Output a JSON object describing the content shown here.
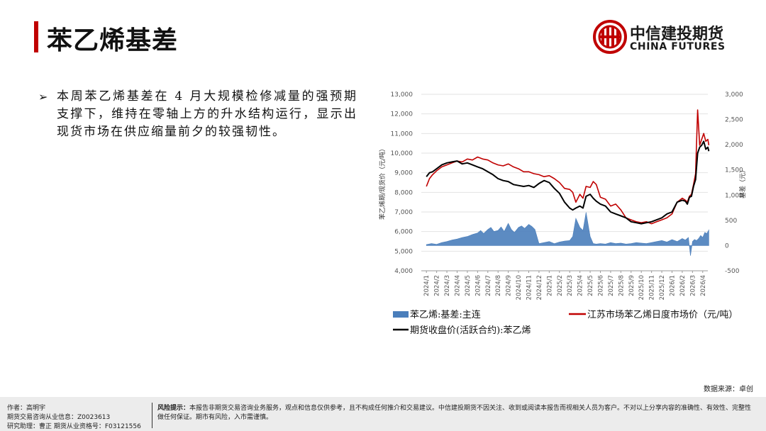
{
  "header": {
    "title": "苯乙烯基差",
    "logo_cn": "中信建投期货",
    "logo_en": "CHINA FUTURES"
  },
  "bullet": {
    "text": "本周苯乙烯基差在 4 月大规模检修减量的强预期支撑下，维持在零轴上方的升水结构运行，显示出现货市场在供应缩量前夕的较强韧性。"
  },
  "source": "数据来源：卓创",
  "footer": {
    "author": "作者：高明宇",
    "license": "期货交易咨询从业信息：Z0023613",
    "assistant": "研究助理：曹正  期货从业资格号：F03121556",
    "risk_label": "风险提示：",
    "risk_text": "本报告非期货交易咨询业务服务，观点和信息仅供参考，且不构成任何推介和交易建议。中信建投期货不因关注、收到或阅读本报告而视相关人员为客户。不对以上分享内容的准确性、有效性、完整性做任何保证。期市有风险，入市需谨慎。"
  },
  "colors": {
    "title_bar": "#c00000",
    "basis": "#4a7ebb",
    "spot": "#c00000",
    "futures": "#000000"
  },
  "chart_data": {
    "type": "line",
    "left_axis": {
      "label": "苯乙烯期/现货价（元/吨）",
      "min": 4000,
      "max": 13000,
      "step": 1000,
      "ticks": [
        "4,000",
        "5,000",
        "6,000",
        "7,000",
        "8,000",
        "9,000",
        "10,000",
        "11,000",
        "12,000",
        "13,000"
      ]
    },
    "right_axis": {
      "label": "基差（元）",
      "min": -500,
      "max": 3000,
      "step": 500,
      "ticks": [
        "-500",
        "0",
        "500",
        "1,000",
        "1,500",
        "2,000",
        "2,500",
        "3,000"
      ]
    },
    "x_labels": [
      "2024/1",
      "2024/2",
      "2024/3",
      "2024/4",
      "2024/5",
      "2024/6",
      "2024/7",
      "2024/8",
      "2024/9",
      "2024/10",
      "2024/11",
      "2024/12",
      "2025/1",
      "2025/2",
      "2025/3",
      "2025/4",
      "2025/5",
      "2025/6",
      "2025/7",
      "2025/8",
      "2025/9",
      "2025/10",
      "2025/11",
      "2025/12",
      "2026/1",
      "2026/2",
      "2026/3",
      "2026/4"
    ],
    "grid": true,
    "legend_position": "bottom",
    "series": [
      {
        "name": "苯乙烯:基差:主连",
        "kind": "area",
        "axis": "right",
        "x": [
          0,
          0.5,
          1,
          1.5,
          2,
          2.5,
          3,
          3.5,
          4,
          4.5,
          5,
          5.3,
          5.6,
          6,
          6.3,
          6.6,
          7,
          7.3,
          7.6,
          8,
          8.3,
          8.6,
          9,
          9.3,
          9.6,
          10,
          10.3,
          10.6,
          11,
          11.5,
          12,
          12.5,
          13,
          13.5,
          14,
          14.3,
          14.6,
          15,
          15.3,
          15.6,
          16,
          16.3,
          16.6,
          17,
          17.5,
          18,
          18.5,
          19,
          19.5,
          20,
          20.5,
          21,
          21.5,
          22,
          22.5,
          23,
          23.5,
          24,
          24.5,
          25,
          25.3,
          25.6,
          25.8,
          26,
          26.2,
          26.4,
          26.6,
          26.8,
          27,
          27.2,
          27.4,
          27.6
        ],
        "values": [
          20,
          40,
          25,
          60,
          80,
          110,
          130,
          160,
          180,
          220,
          250,
          300,
          240,
          320,
          360,
          280,
          300,
          370,
          280,
          440,
          320,
          260,
          360,
          390,
          340,
          420,
          380,
          320,
          40,
          60,
          80,
          40,
          70,
          90,
          100,
          180,
          540,
          360,
          300,
          660,
          180,
          40,
          30,
          40,
          30,
          60,
          40,
          50,
          30,
          40,
          60,
          50,
          40,
          60,
          80,
          100,
          70,
          120,
          80,
          140,
          110,
          160,
          -200,
          80,
          120,
          100,
          140,
          200,
          160,
          260,
          240,
          310
        ]
      },
      {
        "name": "江苏市场苯乙烯日度市场价（元/吨）",
        "kind": "line",
        "axis": "left",
        "x": [
          0,
          0.3,
          0.6,
          1,
          1.5,
          2,
          2.5,
          3,
          3.5,
          4,
          4.5,
          5,
          5.5,
          6,
          6.5,
          7,
          7.5,
          8,
          8.5,
          9,
          9.5,
          10,
          10.5,
          11,
          11.5,
          12,
          12.5,
          13,
          13.5,
          14,
          14.3,
          14.6,
          15,
          15.3,
          15.6,
          16,
          16.3,
          16.6,
          17,
          17.5,
          18,
          18.5,
          19,
          19.5,
          20,
          20.5,
          21,
          21.5,
          22,
          22.5,
          23,
          23.5,
          24,
          24.5,
          25,
          25.3,
          25.5,
          25.7,
          25.9,
          26.1,
          26.3,
          26.5,
          26.7,
          26.9,
          27.1,
          27.3,
          27.5,
          27.6
        ],
        "values": [
          8300,
          8700,
          8900,
          9100,
          9300,
          9400,
          9500,
          9600,
          9550,
          9700,
          9650,
          9800,
          9700,
          9650,
          9500,
          9400,
          9350,
          9450,
          9300,
          9200,
          9050,
          9050,
          8950,
          8900,
          8800,
          8850,
          8700,
          8500,
          8200,
          8150,
          8000,
          7500,
          7900,
          7700,
          8300,
          8250,
          8550,
          8400,
          7750,
          7650,
          7300,
          7400,
          7100,
          6700,
          6600,
          6500,
          6450,
          6500,
          6400,
          6500,
          6600,
          6700,
          6900,
          7500,
          7700,
          7600,
          7500,
          7800,
          7900,
          8400,
          8950,
          12200,
          10400,
          10700,
          11000,
          10600,
          10700,
          10400
        ]
      },
      {
        "name": "期货收盘价(活跃合约):苯乙烯",
        "kind": "line",
        "axis": "left",
        "x": [
          0,
          0.3,
          0.6,
          1,
          1.5,
          2,
          2.5,
          3,
          3.5,
          4,
          4.5,
          5,
          5.5,
          6,
          6.5,
          7,
          7.5,
          8,
          8.5,
          9,
          9.5,
          10,
          10.5,
          11,
          11.5,
          12,
          12.5,
          13,
          13.5,
          14,
          14.3,
          14.6,
          15,
          15.3,
          15.6,
          16,
          16.3,
          16.6,
          17,
          17.5,
          18,
          18.5,
          19,
          19.5,
          20,
          20.5,
          21,
          21.5,
          22,
          22.5,
          23,
          23.5,
          24,
          24.5,
          25,
          25.3,
          25.5,
          25.7,
          25.9,
          26.1,
          26.3,
          26.5,
          26.7,
          26.9,
          27.1,
          27.3,
          27.5,
          27.6
        ],
        "values": [
          8800,
          9000,
          9050,
          9200,
          9400,
          9500,
          9550,
          9600,
          9450,
          9500,
          9400,
          9300,
          9200,
          9050,
          8900,
          8700,
          8600,
          8550,
          8400,
          8350,
          8300,
          8350,
          8250,
          8450,
          8600,
          8500,
          8200,
          7950,
          7500,
          7200,
          7100,
          7200,
          7300,
          7200,
          7800,
          7900,
          7700,
          7550,
          7400,
          7300,
          7000,
          6900,
          6800,
          6700,
          6500,
          6450,
          6400,
          6450,
          6500,
          6600,
          6700,
          6900,
          7000,
          7500,
          7600,
          7550,
          7400,
          7750,
          7800,
          8300,
          8650,
          10000,
          10300,
          10400,
          10600,
          10200,
          10300,
          10100
        ]
      }
    ]
  }
}
